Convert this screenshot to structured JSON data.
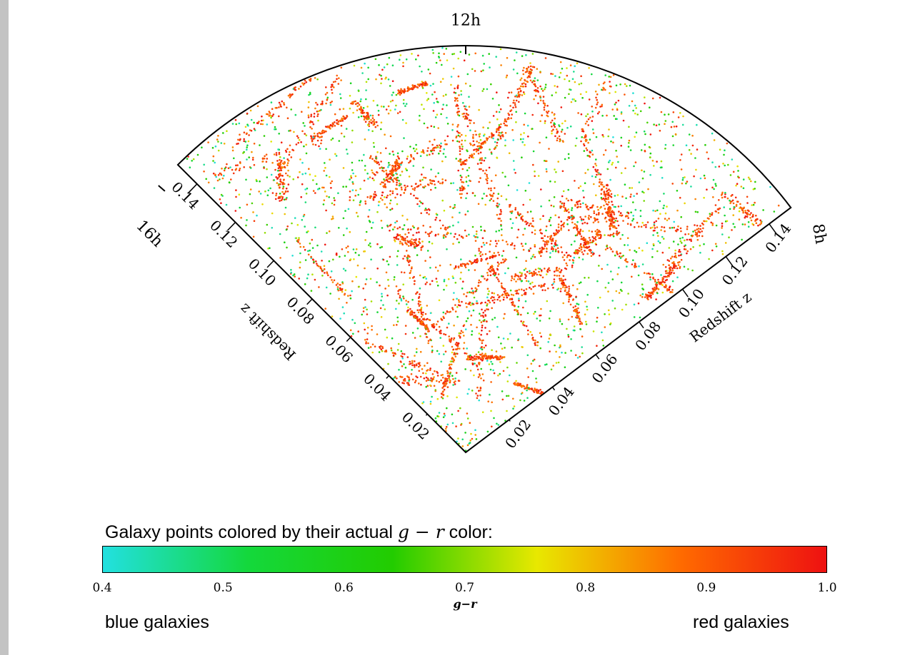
{
  "chart_data": {
    "type": "scatter",
    "projection": "wedge (polar) diagram",
    "ra_labels": [
      "16h",
      "12h",
      "8h"
    ],
    "redshift_ticks": [
      0.02,
      0.04,
      0.06,
      0.08,
      0.1,
      0.12,
      0.14
    ],
    "redshift_tick_labels": [
      "0.02",
      "0.04",
      "0.06",
      "0.08",
      "0.10",
      "0.12",
      "0.14"
    ],
    "left_axis_label": "Redshift z",
    "right_axis_label": "Redshift z",
    "zlim": [
      0,
      0.15
    ],
    "color_by": "g-r",
    "colorbar": {
      "label": "g−r",
      "range": [
        0.4,
        1.0
      ],
      "ticks": [
        "0.4",
        "0.5",
        "0.6",
        "0.7",
        "0.8",
        "0.9",
        "1.0"
      ],
      "colors": [
        "#22e0e0",
        "#14d83c",
        "#22cc00",
        "#e8e800",
        "#ff6a00",
        "#ee1111"
      ]
    }
  },
  "caption": {
    "prefix": "Galaxy points colored by their actual ",
    "math": "g − r",
    "suffix": " color:"
  },
  "colorbar_labels": {
    "left": "blue galaxies",
    "right": "red galaxies"
  }
}
